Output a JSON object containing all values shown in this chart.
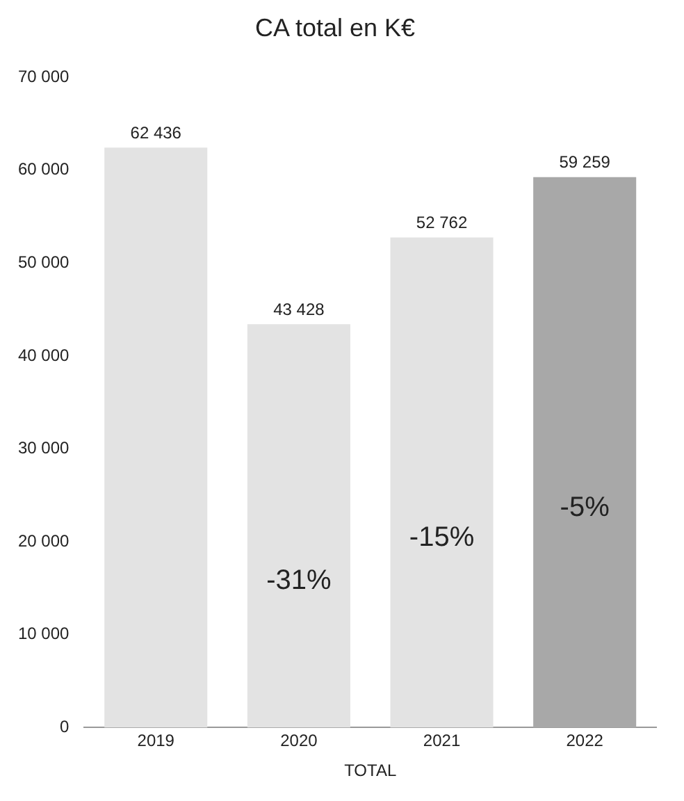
{
  "chart_data": {
    "type": "bar",
    "title": "CA total en K€",
    "xlabel": "TOTAL",
    "categories": [
      "2019",
      "2020",
      "2021",
      "2022"
    ],
    "values": [
      62436,
      43428,
      52762,
      59259
    ],
    "colors": [
      "#e3e3e3",
      "#e3e3e3",
      "#e3e3e3",
      "#a8a8a8"
    ],
    "value_labels": [
      "62 436",
      "43 428",
      "52 762",
      "59 259"
    ],
    "annotations": [
      "-31%",
      "-15%",
      "-5%"
    ],
    "ylim": [
      0,
      70000
    ],
    "yticks": [
      {
        "value": 0,
        "label": "0"
      },
      {
        "value": 10000,
        "label": "10 000"
      },
      {
        "value": 20000,
        "label": "20 000"
      },
      {
        "value": 30000,
        "label": "30 000"
      },
      {
        "value": 40000,
        "label": "40 000"
      },
      {
        "value": 50000,
        "label": "50 000"
      },
      {
        "value": 60000,
        "label": "60 000"
      },
      {
        "value": 70000,
        "label": "70 000"
      }
    ],
    "grid": false,
    "legend": false
  }
}
